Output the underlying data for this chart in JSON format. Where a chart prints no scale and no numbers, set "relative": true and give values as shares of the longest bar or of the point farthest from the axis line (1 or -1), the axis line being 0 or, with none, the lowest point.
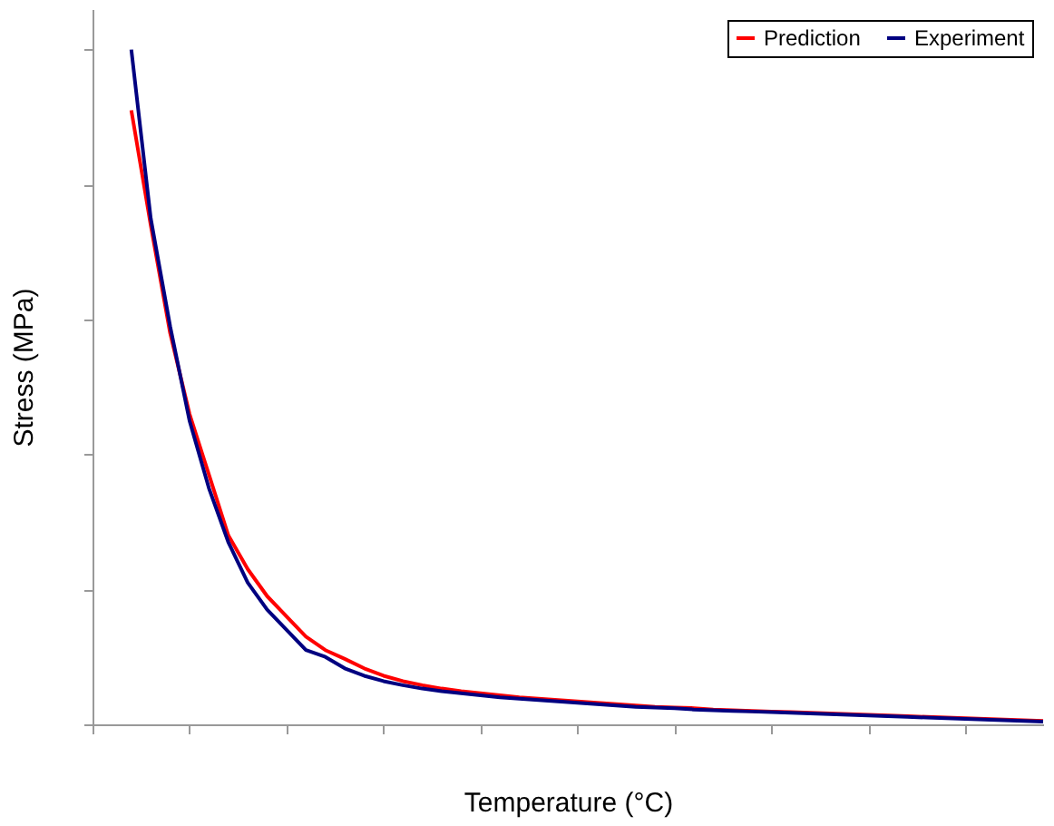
{
  "chart_data": {
    "type": "line",
    "relative": true,
    "xlabel": "Temperature (°C)",
    "ylabel": "Stress (MPa)",
    "categories": [
      null,
      null,
      null,
      null,
      null,
      null,
      null,
      null,
      null,
      null,
      null,
      null,
      null,
      null,
      null,
      null,
      null,
      null,
      null,
      null,
      null,
      null,
      null,
      null,
      null,
      null,
      null,
      null,
      null,
      null,
      null,
      null,
      null,
      null,
      null,
      null,
      null,
      null,
      null,
      null,
      null,
      null,
      null,
      null,
      null,
      null,
      null,
      null,
      null,
      null
    ],
    "series": [
      {
        "name": "Prediction",
        "color": "#ff0000",
        "values": [
          null,
          null,
          0.91,
          0.74,
          0.58,
          0.46,
          0.37,
          0.28,
          0.23,
          0.19,
          0.16,
          0.13,
          0.11,
          0.097,
          0.083,
          0.072,
          0.064,
          0.058,
          0.053,
          0.049,
          0.046,
          0.043,
          0.04,
          0.038,
          0.036,
          0.034,
          0.032,
          0.03,
          0.028,
          0.026,
          0.025,
          0.024,
          0.022,
          0.021,
          0.02,
          0.019,
          0.018,
          0.017,
          0.016,
          0.015,
          0.014,
          0.013,
          0.012,
          0.011,
          0.01,
          0.009,
          0.008,
          0.007,
          0.006,
          0.005
        ]
      },
      {
        "name": "Experiment",
        "color": "#000080",
        "values": [
          null,
          null,
          1.0,
          0.75,
          0.59,
          0.45,
          0.35,
          0.27,
          0.21,
          0.17,
          0.14,
          0.11,
          0.1,
          0.083,
          0.072,
          0.064,
          0.058,
          0.053,
          0.049,
          0.046,
          0.043,
          0.04,
          0.038,
          0.036,
          0.034,
          0.032,
          0.03,
          0.028,
          0.026,
          0.025,
          0.024,
          0.022,
          0.021,
          0.02,
          0.019,
          0.018,
          0.017,
          0.016,
          0.015,
          0.014,
          0.013,
          0.012,
          0.011,
          0.01,
          0.009,
          0.008,
          0.007,
          0.006,
          0.005,
          0.004
        ]
      }
    ],
    "legend": "top right",
    "grid": false,
    "tick_labels": false,
    "marker": "none",
    "line_style": "solid"
  }
}
